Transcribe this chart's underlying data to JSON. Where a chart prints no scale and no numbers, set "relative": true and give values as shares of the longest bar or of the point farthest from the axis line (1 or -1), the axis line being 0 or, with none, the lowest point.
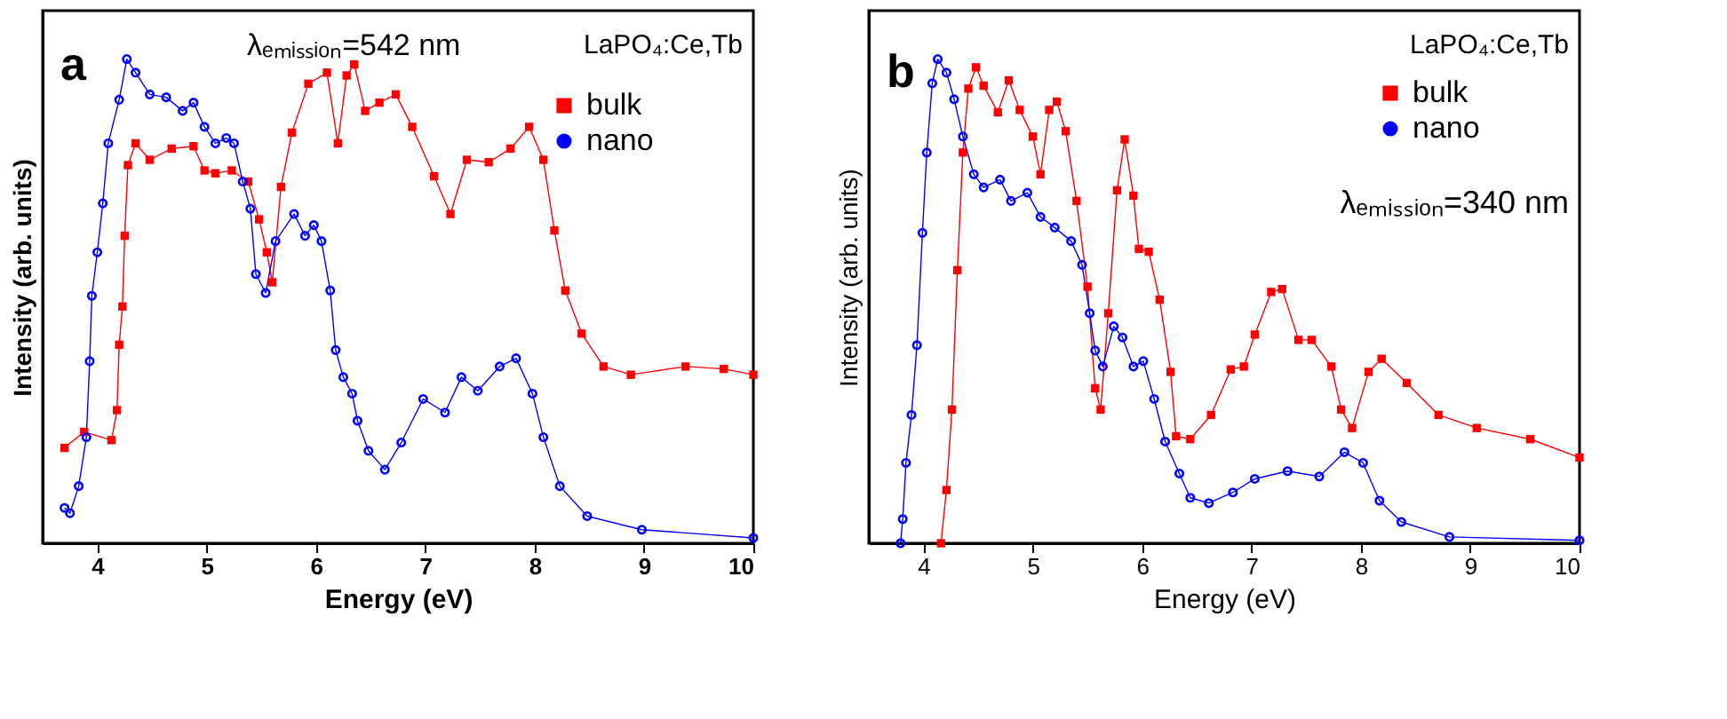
{
  "chart_data": [
    {
      "type": "line",
      "relative": true,
      "xlabel": "Energy (eV)",
      "ylabel": "Intensity (arb. units)",
      "xlim": [
        3.5,
        10
      ],
      "xticks": [
        4,
        5,
        6,
        7,
        8,
        9,
        10
      ],
      "legend": "top right",
      "annotations": [
        "a",
        "λₑₘᵢₛₛᵢₒₙ=542 nm",
        "LaPO₄:Ce,Tb"
      ],
      "series": [
        {
          "name": "bulk",
          "color": "#ff0000",
          "marker": "square",
          "x": [
            3.7,
            3.88,
            4.13,
            4.18,
            4.2,
            4.23,
            4.25,
            4.28,
            4.35,
            4.48,
            4.68,
            4.88,
            4.98,
            5.08,
            5.23,
            5.38,
            5.48,
            5.55,
            5.6,
            5.68,
            5.78,
            5.93,
            6.1,
            6.2,
            6.28,
            6.35,
            6.45,
            6.58,
            6.73,
            6.88,
            7.08,
            7.23,
            7.38,
            7.58,
            7.78,
            7.95,
            8.08,
            8.18,
            8.28,
            8.43,
            8.63,
            8.88,
            9.38,
            9.73,
            10.0
          ],
          "values": [
            0.197,
            0.23,
            0.213,
            0.275,
            0.41,
            0.489,
            0.635,
            0.781,
            0.826,
            0.792,
            0.815,
            0.82,
            0.77,
            0.764,
            0.77,
            0.747,
            0.669,
            0.601,
            0.539,
            0.736,
            0.848,
            0.949,
            0.972,
            0.826,
            0.966,
            0.989,
            0.893,
            0.91,
            0.927,
            0.86,
            0.758,
            0.68,
            0.792,
            0.787,
            0.815,
            0.86,
            0.792,
            0.646,
            0.522,
            0.433,
            0.365,
            0.348,
            0.365,
            0.36,
            0.348
          ]
        },
        {
          "name": "nano",
          "color": "#0000ff",
          "marker": "circle",
          "x": [
            3.7,
            3.75,
            3.83,
            3.9,
            3.93,
            3.95,
            4.0,
            4.05,
            4.1,
            4.2,
            4.27,
            4.35,
            4.48,
            4.63,
            4.78,
            4.88,
            4.98,
            5.08,
            5.18,
            5.25,
            5.33,
            5.4,
            5.45,
            5.54,
            5.63,
            5.8,
            5.9,
            5.98,
            6.05,
            6.13,
            6.18,
            6.25,
            6.33,
            6.38,
            6.48,
            6.63,
            6.78,
            6.98,
            7.18,
            7.33,
            7.48,
            7.68,
            7.83,
            7.98,
            8.08,
            8.23,
            8.48,
            8.98,
            10.0
          ],
          "values": [
            0.073,
            0.062,
            0.118,
            0.219,
            0.376,
            0.511,
            0.601,
            0.702,
            0.826,
            0.916,
            1.0,
            0.972,
            0.927,
            0.921,
            0.893,
            0.91,
            0.86,
            0.826,
            0.837,
            0.826,
            0.747,
            0.691,
            0.556,
            0.517,
            0.624,
            0.68,
            0.635,
            0.657,
            0.624,
            0.522,
            0.399,
            0.343,
            0.309,
            0.253,
            0.191,
            0.152,
            0.208,
            0.298,
            0.27,
            0.343,
            0.315,
            0.365,
            0.382,
            0.309,
            0.219,
            0.118,
            0.056,
            0.028,
            0.011
          ]
        }
      ]
    },
    {
      "type": "line",
      "relative": true,
      "xlabel": "Energy (eV)",
      "ylabel": "Intensity (arb. units)",
      "xlim": [
        3.5,
        10
      ],
      "xticks": [
        4,
        5,
        6,
        7,
        8,
        9,
        10
      ],
      "legend": "top right",
      "annotations": [
        "b",
        "LaPO₄:Ce,Tb",
        "λₑₘᵢₛₛᵢₒₙ=340 nm"
      ],
      "series": [
        {
          "name": "bulk",
          "color": "#ff0000",
          "marker": "square",
          "x": [
            4.16,
            4.21,
            4.26,
            4.31,
            4.36,
            4.41,
            4.48,
            4.55,
            4.68,
            4.78,
            4.88,
            5.0,
            5.07,
            5.15,
            5.22,
            5.3,
            5.4,
            5.5,
            5.57,
            5.62,
            5.69,
            5.77,
            5.84,
            5.92,
            5.97,
            6.06,
            6.16,
            6.26,
            6.31,
            6.44,
            6.63,
            6.81,
            6.93,
            7.03,
            7.18,
            7.28,
            7.43,
            7.55,
            7.73,
            7.82,
            7.92,
            8.07,
            8.19,
            8.42,
            8.71,
            9.06,
            9.55,
            10.0
          ],
          "values": [
            0,
            0.11,
            0.276,
            0.564,
            0.807,
            0.939,
            0.983,
            0.945,
            0.89,
            0.956,
            0.895,
            0.84,
            0.762,
            0.895,
            0.912,
            0.851,
            0.707,
            0.53,
            0.32,
            0.276,
            0.475,
            0.729,
            0.834,
            0.718,
            0.608,
            0.602,
            0.503,
            0.354,
            0.221,
            0.215,
            0.265,
            0.359,
            0.365,
            0.431,
            0.519,
            0.525,
            0.42,
            0.42,
            0.365,
            0.276,
            0.238,
            0.354,
            0.381,
            0.331,
            0.265,
            0.238,
            0.215,
            0.177
          ]
        },
        {
          "name": "nano",
          "color": "#0000ff",
          "marker": "circle",
          "x": [
            3.79,
            3.81,
            3.84,
            3.89,
            3.94,
            3.99,
            4.03,
            4.08,
            4.13,
            4.21,
            4.28,
            4.36,
            4.46,
            4.55,
            4.7,
            4.8,
            4.95,
            5.07,
            5.2,
            5.35,
            5.45,
            5.52,
            5.57,
            5.64,
            5.74,
            5.82,
            5.92,
            6.01,
            6.11,
            6.21,
            6.34,
            6.44,
            6.61,
            6.83,
            7.03,
            7.33,
            7.62,
            7.85,
            8.02,
            8.17,
            8.37,
            8.81,
            10.0
          ],
          "values": [
            0,
            0.05,
            0.166,
            0.265,
            0.409,
            0.641,
            0.807,
            0.95,
            1.0,
            0.972,
            0.917,
            0.84,
            0.762,
            0.735,
            0.751,
            0.707,
            0.724,
            0.674,
            0.652,
            0.624,
            0.575,
            0.475,
            0.398,
            0.365,
            0.448,
            0.425,
            0.365,
            0.376,
            0.298,
            0.21,
            0.144,
            0.094,
            0.083,
            0.105,
            0.133,
            0.149,
            0.138,
            0.188,
            0.166,
            0.088,
            0.044,
            0.013,
            0.006
          ]
        }
      ]
    }
  ]
}
